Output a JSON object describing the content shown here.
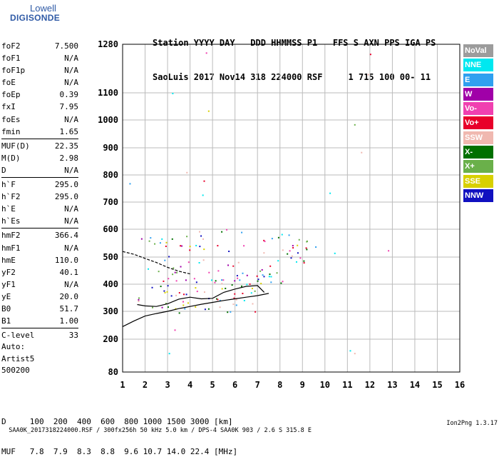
{
  "logo": {
    "line1": "Lowell",
    "line2": "DIGISONDE"
  },
  "header": {
    "line1": "Station YYYY DAY   DDD HHMMSS P1   FFS S AXN PPS IGA PS",
    "line2": "SaoLuis 2017 Nov14 318 224000 RSF     1 715 100 00- 11"
  },
  "params_group1": [
    {
      "name": "foF2",
      "value": "7.500"
    },
    {
      "name": "foF1",
      "value": "N/A"
    },
    {
      "name": "foF1p",
      "value": "N/A"
    },
    {
      "name": "foE",
      "value": "N/A"
    },
    {
      "name": "foEp",
      "value": "0.39"
    },
    {
      "name": "fxI",
      "value": "7.95"
    },
    {
      "name": "foEs",
      "value": "N/A"
    },
    {
      "name": "fmin",
      "value": "1.65"
    }
  ],
  "params_group2": [
    {
      "name": "MUF(D)",
      "value": "22.35"
    },
    {
      "name": "M(D)",
      "value": "2.98"
    },
    {
      "name": "D",
      "value": "N/A"
    }
  ],
  "params_group3": [
    {
      "name": "h`F",
      "value": "295.0"
    },
    {
      "name": "h`F2",
      "value": "295.0"
    },
    {
      "name": "h`E",
      "value": "N/A"
    },
    {
      "name": "h`Es",
      "value": "N/A"
    }
  ],
  "params_group4": [
    {
      "name": "hmF2",
      "value": "366.4"
    },
    {
      "name": "hmF1",
      "value": "N/A"
    },
    {
      "name": "hmE",
      "value": "110.0"
    },
    {
      "name": "yF2",
      "value": "40.1"
    },
    {
      "name": "yF1",
      "value": "N/A"
    },
    {
      "name": "yE",
      "value": "20.0"
    },
    {
      "name": "B0",
      "value": "51.7"
    },
    {
      "name": "B1",
      "value": "1.00"
    }
  ],
  "params_group5": [
    {
      "name": "C-level",
      "value": "33"
    }
  ],
  "auto": {
    "line1": "Auto:",
    "line2": "Artist5",
    "line3": "500200"
  },
  "legend": [
    {
      "label": "NoVal",
      "color": "#9c9c9c"
    },
    {
      "label": "NNE",
      "color": "#00e8f0"
    },
    {
      "label": "E",
      "color": "#2fa0f0"
    },
    {
      "label": "W",
      "color": "#a000a8"
    },
    {
      "label": "Vo-",
      "color": "#f040b0"
    },
    {
      "label": "Vo+",
      "color": "#e8002a"
    },
    {
      "label": "SSW",
      "color": "#f0b8b0"
    },
    {
      "label": "X-",
      "color": "#007000"
    },
    {
      "label": "X+",
      "color": "#6ab04a"
    },
    {
      "label": "SSE",
      "color": "#d8d000"
    },
    {
      "label": "NNW",
      "color": "#1010c0"
    }
  ],
  "bottom": {
    "dline": "D     100  200  400  600  800 1000 1500 3000 [km]",
    "mline": "MUF   7.8  7.9  8.3  8.8  9.6 10.7 14.0 22.4 [MHz]"
  },
  "footer": {
    "text": "SAA0K_2017318224000.RSF / 300fx256h 50 kHz 5.0 km / DPS-4 SAA0K 903 / 2.6 S 315.8 E",
    "version": "Ion2Png 1.3.17"
  },
  "chart_data": {
    "type": "scatter",
    "xlim": [
      1,
      16
    ],
    "ylim": [
      80,
      1280
    ],
    "x_ticks": [
      1,
      2,
      3,
      4,
      5,
      6,
      7,
      8,
      9,
      10,
      11,
      12,
      13,
      14,
      15,
      16
    ],
    "y_ticks": [
      80,
      200,
      300,
      400,
      500,
      600,
      700,
      800,
      900,
      1000,
      1100,
      1280
    ],
    "x_unit": "MHz",
    "y_unit": "km",
    "grid": true,
    "traces": [
      {
        "kind": "profile",
        "x": [
          1.0,
          1.5,
          2.0,
          2.5,
          3.0,
          3.5,
          4.0,
          4.5,
          5.0,
          5.5,
          6.0,
          6.5,
          7.0,
          7.5
        ],
        "y": [
          245,
          265,
          283,
          292,
          300,
          310,
          318,
          326,
          333,
          340,
          346,
          352,
          358,
          366
        ]
      },
      {
        "kind": "trace_f",
        "x": [
          1.65,
          2.0,
          2.5,
          3.0,
          3.5,
          4.0,
          4.5,
          5.0,
          5.5,
          6.0,
          6.5,
          7.0,
          7.3
        ],
        "y": [
          325,
          320,
          318,
          328,
          345,
          352,
          346,
          348,
          370,
          382,
          392,
          395,
          370
        ]
      },
      {
        "kind": "trace_upper",
        "x": [
          1.0,
          1.5,
          2.0,
          2.5,
          3.0,
          3.5,
          4.0
        ],
        "y": [
          520,
          510,
          495,
          480,
          462,
          448,
          438
        ]
      }
    ],
    "echo_clusters": [
      {
        "x": [
          1.65,
          7.0
        ],
        "y": [
          295,
          470
        ],
        "density": "high"
      },
      {
        "x": [
          7.0,
          9.2
        ],
        "y": [
          400,
          600
        ],
        "density": "high"
      },
      {
        "x": [
          2.8,
          6.5
        ],
        "y": [
          470,
          620
        ],
        "density": "medium"
      },
      {
        "x": [
          1.8,
          4.7
        ],
        "y": [
          530,
          580
        ],
        "density": "high"
      },
      {
        "x": [
          3.8,
          4.8
        ],
        "y": [
          600,
          820
        ],
        "density": "low"
      },
      {
        "x": [
          9.0,
          10.5
        ],
        "y": [
          500,
          600
        ],
        "density": "low"
      }
    ],
    "isolated_points": [
      {
        "x": 4.7,
        "y": 1250
      },
      {
        "x": 12.0,
        "y": 1245
      },
      {
        "x": 11.9,
        "y": 1170
      },
      {
        "x": 11.3,
        "y": 985
      },
      {
        "x": 11.6,
        "y": 885
      },
      {
        "x": 3.2,
        "y": 1100
      },
      {
        "x": 4.8,
        "y": 1035
      },
      {
        "x": 11.1,
        "y": 160
      },
      {
        "x": 11.3,
        "y": 150
      },
      {
        "x": 3.05,
        "y": 150
      },
      {
        "x": 3.3,
        "y": 235
      },
      {
        "x": 12.8,
        "y": 525
      },
      {
        "x": 10.2,
        "y": 735
      },
      {
        "x": 1.3,
        "y": 770
      }
    ]
  }
}
